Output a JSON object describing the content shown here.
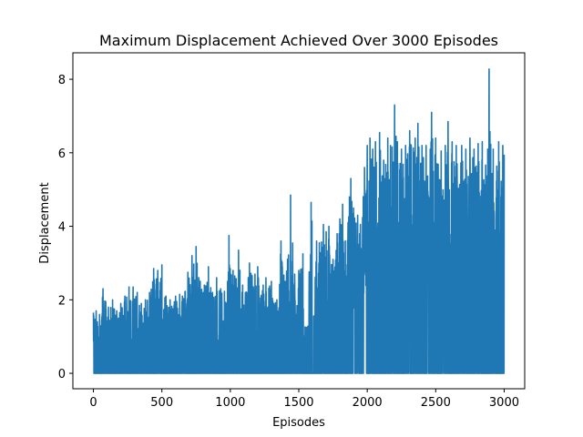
{
  "chart_data": {
    "type": "line",
    "title": "Maximum Displacement Achieved Over 3000 Episodes",
    "xlabel": "Episodes",
    "ylabel": "Displacement",
    "xlim": [
      -150,
      3150
    ],
    "ylim": [
      -0.42,
      8.72
    ],
    "xticks": [
      0,
      500,
      1000,
      1500,
      2000,
      2500,
      3000
    ],
    "yticks": [
      0,
      2,
      4,
      6,
      8
    ],
    "grid": false,
    "legend": "none",
    "series": [
      {
        "color": "#1f77b4",
        "episodes": 3000,
        "spikes": [
          [
            0,
            1.65
          ],
          [
            20,
            1.7
          ],
          [
            45,
            1.6
          ],
          [
            70,
            2.3
          ],
          [
            90,
            1.95
          ],
          [
            110,
            1.8
          ],
          [
            140,
            2.0
          ],
          [
            170,
            1.7
          ],
          [
            200,
            1.9
          ],
          [
            230,
            2.1
          ],
          [
            260,
            2.35
          ],
          [
            290,
            2.35
          ],
          [
            320,
            2.2
          ],
          [
            350,
            1.9
          ],
          [
            380,
            2.0
          ],
          [
            410,
            2.2
          ],
          [
            440,
            2.85
          ],
          [
            470,
            2.8
          ],
          [
            500,
            2.95
          ],
          [
            530,
            2.1
          ],
          [
            560,
            2.0
          ],
          [
            600,
            2.1
          ],
          [
            630,
            2.15
          ],
          [
            650,
            2.1
          ],
          [
            690,
            2.75
          ],
          [
            720,
            3.2
          ],
          [
            750,
            3.45
          ],
          [
            780,
            2.5
          ],
          [
            810,
            2.4
          ],
          [
            840,
            2.9
          ],
          [
            870,
            2.2
          ],
          [
            900,
            2.6
          ],
          [
            930,
            2.3
          ],
          [
            980,
            2.5
          ],
          [
            990,
            3.75
          ],
          [
            1020,
            2.8
          ],
          [
            1060,
            3.35
          ],
          [
            1090,
            2.4
          ],
          [
            1110,
            2.2
          ],
          [
            1140,
            3.0
          ],
          [
            1180,
            2.7
          ],
          [
            1200,
            2.9
          ],
          [
            1240,
            2.4
          ],
          [
            1260,
            2.6
          ],
          [
            1300,
            2.5
          ],
          [
            1340,
            2.0
          ],
          [
            1370,
            3.6
          ],
          [
            1400,
            2.5
          ],
          [
            1440,
            4.85
          ],
          [
            1470,
            2.7
          ],
          [
            1500,
            2.8
          ],
          [
            1530,
            3.25
          ],
          [
            1550,
            0.95
          ],
          [
            1590,
            4.65
          ],
          [
            1630,
            3.6
          ],
          [
            1650,
            3.55
          ],
          [
            1680,
            4.05
          ],
          [
            1700,
            3.85
          ],
          [
            1720,
            4.0
          ],
          [
            1750,
            3.1
          ],
          [
            1780,
            3.8
          ],
          [
            1800,
            4.2
          ],
          [
            1820,
            4.6
          ],
          [
            1840,
            3.6
          ],
          [
            1870,
            4.8
          ],
          [
            1880,
            5.3
          ],
          [
            1900,
            4.5
          ],
          [
            1930,
            4.3
          ],
          [
            1950,
            4.05
          ],
          [
            1980,
            5.6
          ],
          [
            2000,
            6.2
          ],
          [
            2020,
            6.4
          ],
          [
            2040,
            6.1
          ],
          [
            2060,
            6.3
          ],
          [
            2090,
            6.55
          ],
          [
            2120,
            5.8
          ],
          [
            2150,
            6.4
          ],
          [
            2170,
            6.2
          ],
          [
            2200,
            7.3
          ],
          [
            2220,
            6.3
          ],
          [
            2250,
            6.1
          ],
          [
            2280,
            6.2
          ],
          [
            2310,
            6.6
          ],
          [
            2350,
            6.4
          ],
          [
            2370,
            6.8
          ],
          [
            2400,
            6.2
          ],
          [
            2430,
            6.2
          ],
          [
            2460,
            6.1
          ],
          [
            2470,
            7.1
          ],
          [
            2500,
            6.4
          ],
          [
            2540,
            6.05
          ],
          [
            2570,
            6.2
          ],
          [
            2590,
            6.85
          ],
          [
            2620,
            6.3
          ],
          [
            2650,
            6.2
          ],
          [
            2690,
            6.2
          ],
          [
            2720,
            6.1
          ],
          [
            2750,
            6.4
          ],
          [
            2780,
            6.1
          ],
          [
            2810,
            6.25
          ],
          [
            2840,
            6.3
          ],
          [
            2880,
            6.1
          ],
          [
            2890,
            8.28
          ],
          [
            2920,
            6.1
          ],
          [
            2960,
            6.3
          ],
          [
            2990,
            6.2
          ],
          [
            3000,
            5.95
          ]
        ]
      }
    ]
  }
}
